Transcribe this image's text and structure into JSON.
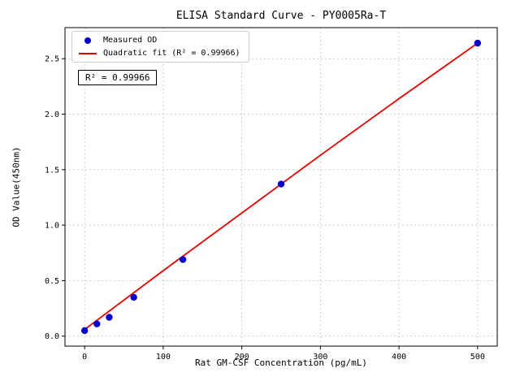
{
  "chart": {
    "title": "ELISA Standard Curve - PY0005Ra-T",
    "xlabel": "Rat GM-CSF Concentration (pg/mL)",
    "ylabel": "OD Value(450nm)",
    "annotation": "R² = 0.99966",
    "legend": [
      {
        "label": "Measured OD",
        "marker": "dot",
        "color": "#0000cd"
      },
      {
        "label": "Quadratic fit (R² = 0.99966)",
        "marker": "line",
        "color": "#e80000"
      }
    ]
  },
  "chart_data": {
    "type": "scatter",
    "title": "ELISA Standard Curve - PY0005Ra-T",
    "xlabel": "Rat GM-CSF Concentration (pg/mL)",
    "ylabel": "OD Value(450nm)",
    "xlim": [
      -25,
      525
    ],
    "ylim": [
      -0.09,
      2.78
    ],
    "xticks": [
      0,
      100,
      200,
      300,
      400,
      500
    ],
    "xtick_labels": [
      "0",
      "100",
      "200",
      "300",
      "400",
      "500"
    ],
    "yticks": [
      0,
      0.5,
      1,
      1.5,
      2,
      2.5
    ],
    "ytick_labels": [
      "0.0",
      "0.5",
      "1.0",
      "1.5",
      "2.0",
      "2.5"
    ],
    "grid": true,
    "legend_position": "upper left",
    "r_squared": 0.99966,
    "series": [
      {
        "name": "Quadratic fit (R² = 0.99966)",
        "type": "line",
        "color": "#e80000",
        "x": [
          0,
          100,
          200,
          300,
          400,
          500
        ],
        "y": [
          0.06,
          0.59,
          1.11,
          1.63,
          2.14,
          2.64
        ]
      },
      {
        "name": "Measured OD",
        "type": "scatter",
        "color": "#0000cd",
        "x": [
          0,
          15.6,
          31.25,
          62.5,
          125,
          250,
          500
        ],
        "y": [
          0.05,
          0.11,
          0.17,
          0.35,
          0.69,
          1.37,
          2.64
        ]
      }
    ]
  }
}
